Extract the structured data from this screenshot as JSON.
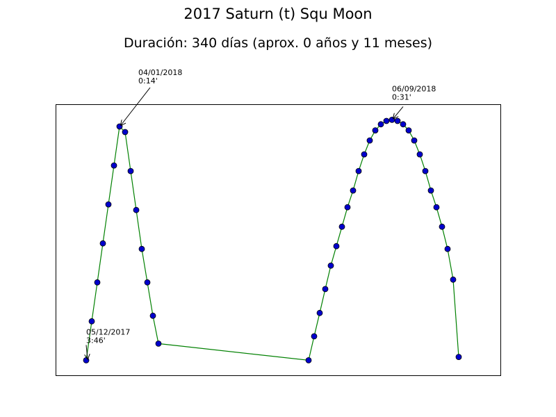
{
  "chart_data": {
    "type": "line",
    "title": "2017 Saturn (t) Squ Moon",
    "subtitle": "Duración: 340 días (aprox. 0 años y 11 meses)",
    "xlabel": "",
    "ylabel": "",
    "grid": false,
    "xlim": [
      -5.5,
      74.5
    ],
    "ylim": [
      -2.7,
      46
    ],
    "line_color": "#008000",
    "marker_color": "#0000cc",
    "series": [
      {
        "x": [
          0,
          1,
          2,
          3,
          4,
          5,
          6,
          7,
          8,
          9,
          10,
          11,
          12,
          13,
          40,
          41,
          42,
          43,
          44,
          45,
          46,
          47,
          48,
          49,
          50,
          51,
          52,
          53,
          54,
          55,
          56,
          57,
          58,
          59,
          60,
          61,
          62,
          63,
          64,
          65,
          66,
          67
        ],
        "y": [
          0,
          7,
          14,
          21,
          28,
          35,
          42,
          41,
          34,
          27,
          20,
          14,
          8,
          3,
          0,
          4.3,
          8.5,
          12.8,
          17,
          20.5,
          24,
          27.5,
          30.5,
          34,
          37,
          39.5,
          41.3,
          42.4,
          43,
          43.2,
          43,
          42.4,
          41.3,
          39.5,
          37,
          34,
          30.5,
          27.5,
          24,
          20,
          14.5,
          0.6
        ]
      }
    ],
    "annotations": [
      {
        "point_index": 0,
        "date": "05/12/2017",
        "value": "3:46'"
      },
      {
        "point_index": 6,
        "date": "04/01/2018",
        "value": "0:14'"
      },
      {
        "point_index": 29,
        "date": "06/09/2018",
        "value": "0:31'"
      }
    ]
  }
}
